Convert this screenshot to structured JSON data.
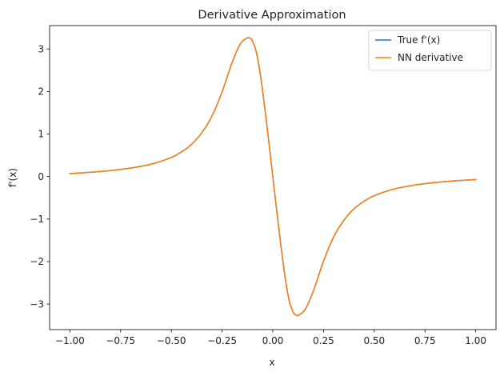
{
  "chart_data": {
    "type": "line",
    "title": "Derivative Approximation",
    "xlabel": "x",
    "ylabel": "f'(x)",
    "xlim": [
      -1.1,
      1.1
    ],
    "ylim": [
      -3.6,
      3.55
    ],
    "xticks": [
      -1.0,
      -0.75,
      -0.5,
      -0.25,
      0.0,
      0.25,
      0.5,
      0.75,
      1.0
    ],
    "xtick_labels": [
      "−1.00",
      "−0.75",
      "−0.50",
      "−0.25",
      "0.00",
      "0.25",
      "0.50",
      "0.75",
      "1.00"
    ],
    "yticks": [
      -3,
      -2,
      -1,
      0,
      1,
      2,
      3
    ],
    "ytick_labels": [
      "−3",
      "−2",
      "−1",
      "0",
      "1",
      "2",
      "3"
    ],
    "grid": false,
    "legend_position": "top-right",
    "x": [
      -1.0,
      -0.9,
      -0.8,
      -0.7,
      -0.6,
      -0.5,
      -0.45,
      -0.4,
      -0.35,
      -0.3,
      -0.25,
      -0.2,
      -0.16,
      -0.13,
      -0.115,
      -0.1,
      -0.08,
      -0.06,
      -0.04,
      -0.02,
      0.0,
      0.02,
      0.04,
      0.06,
      0.08,
      0.1,
      0.115,
      0.13,
      0.16,
      0.2,
      0.25,
      0.3,
      0.35,
      0.4,
      0.45,
      0.5,
      0.6,
      0.7,
      0.8,
      0.9,
      1.0
    ],
    "series": [
      {
        "name": "True f'(x)",
        "color": "#1f77b4",
        "values": [
          0.07,
          0.1,
          0.14,
          0.2,
          0.29,
          0.45,
          0.58,
          0.76,
          1.03,
          1.42,
          1.99,
          2.69,
          3.12,
          3.25,
          3.26,
          3.19,
          2.9,
          2.35,
          1.63,
          0.83,
          0.0,
          -0.83,
          -1.63,
          -2.35,
          -2.9,
          -3.19,
          -3.26,
          -3.25,
          -3.12,
          -2.69,
          -1.99,
          -1.42,
          -1.03,
          -0.76,
          -0.58,
          -0.45,
          -0.29,
          -0.2,
          -0.14,
          -0.1,
          -0.07
        ]
      },
      {
        "name": "NN derivative",
        "color": "#ff7f0e",
        "values": [
          0.07,
          0.1,
          0.14,
          0.2,
          0.29,
          0.45,
          0.58,
          0.76,
          1.03,
          1.42,
          1.99,
          2.69,
          3.12,
          3.25,
          3.26,
          3.19,
          2.9,
          2.35,
          1.63,
          0.83,
          0.0,
          -0.83,
          -1.63,
          -2.35,
          -2.9,
          -3.19,
          -3.26,
          -3.25,
          -3.12,
          -2.69,
          -1.99,
          -1.42,
          -1.03,
          -0.76,
          -0.58,
          -0.45,
          -0.29,
          -0.2,
          -0.14,
          -0.1,
          -0.07
        ]
      }
    ]
  }
}
